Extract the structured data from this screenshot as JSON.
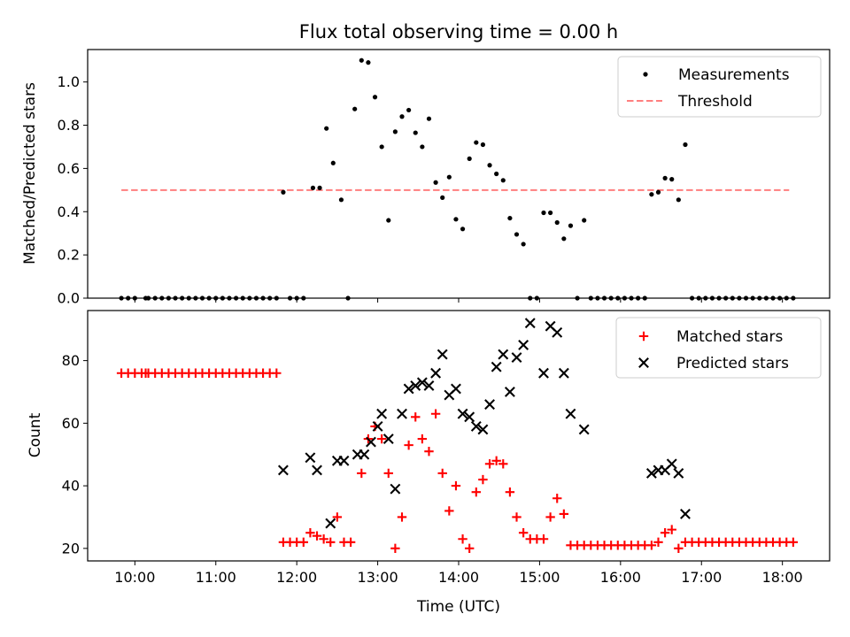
{
  "figure_title": "Flux total observing time = 0.00 h",
  "chart_data": [
    {
      "type": "scatter",
      "panel": "top",
      "title": "Flux total observing time = 0.00 h",
      "xlabel": "",
      "ylabel": "Matched/Predicted stars",
      "xlim": [
        "09:25",
        "18:35"
      ],
      "ylim": [
        0,
        1.15
      ],
      "x_ticks": [
        "10:00",
        "11:00",
        "12:00",
        "13:00",
        "14:00",
        "15:00",
        "16:00",
        "17:00",
        "18:00"
      ],
      "x_tick_labels_shown": false,
      "y_ticks": [
        "0.0",
        "0.2",
        "0.4",
        "0.6",
        "0.8",
        "1.0"
      ],
      "grid": false,
      "legend_position": "top-right",
      "series": [
        {
          "name": "Measurements",
          "kind": "points",
          "color": "#000000",
          "points": [
            [
              "09:50",
              0
            ],
            [
              "09:55",
              0
            ],
            [
              "10:00",
              0
            ],
            [
              "10:08",
              0
            ],
            [
              "10:10",
              0
            ],
            [
              "10:15",
              0
            ],
            [
              "10:20",
              0
            ],
            [
              "10:25",
              0
            ],
            [
              "10:30",
              0
            ],
            [
              "10:35",
              0
            ],
            [
              "10:40",
              0
            ],
            [
              "10:45",
              0
            ],
            [
              "10:50",
              0
            ],
            [
              "10:55",
              0
            ],
            [
              "11:00",
              0
            ],
            [
              "11:05",
              0
            ],
            [
              "11:10",
              0
            ],
            [
              "11:15",
              0
            ],
            [
              "11:20",
              0
            ],
            [
              "11:25",
              0
            ],
            [
              "11:30",
              0
            ],
            [
              "11:35",
              0
            ],
            [
              "11:40",
              0
            ],
            [
              "11:45",
              0
            ],
            [
              "11:50",
              0.49
            ],
            [
              "11:55",
              0
            ],
            [
              "12:00",
              0
            ],
            [
              "12:05",
              0
            ],
            [
              "12:12",
              0.51
            ],
            [
              "12:17",
              0.51
            ],
            [
              "12:22",
              0.785
            ],
            [
              "12:27",
              0.625
            ],
            [
              "12:33",
              0.455
            ],
            [
              "12:38",
              0
            ],
            [
              "12:43",
              0.875
            ],
            [
              "12:48",
              1.1
            ],
            [
              "12:53",
              1.09
            ],
            [
              "12:58",
              0.93
            ],
            [
              "13:03",
              0.7
            ],
            [
              "13:08",
              0.36
            ],
            [
              "13:13",
              0.77
            ],
            [
              "13:18",
              0.84
            ],
            [
              "13:23",
              0.87
            ],
            [
              "13:28",
              0.765
            ],
            [
              "13:33",
              0.7
            ],
            [
              "13:38",
              0.83
            ],
            [
              "13:43",
              0.535
            ],
            [
              "13:48",
              0.465
            ],
            [
              "13:53",
              0.56
            ],
            [
              "13:58",
              0.365
            ],
            [
              "14:03",
              0.32
            ],
            [
              "14:08",
              0.645
            ],
            [
              "14:13",
              0.72
            ],
            [
              "14:18",
              0.71
            ],
            [
              "14:23",
              0.615
            ],
            [
              "14:28",
              0.575
            ],
            [
              "14:33",
              0.545
            ],
            [
              "14:38",
              0.37
            ],
            [
              "14:43",
              0.295
            ],
            [
              "14:48",
              0.25
            ],
            [
              "14:53",
              0
            ],
            [
              "14:58",
              0
            ],
            [
              "15:03",
              0.395
            ],
            [
              "15:08",
              0.395
            ],
            [
              "15:13",
              0.35
            ],
            [
              "15:18",
              0.275
            ],
            [
              "15:23",
              0.335
            ],
            [
              "15:28",
              0
            ],
            [
              "15:33",
              0.36
            ],
            [
              "15:38",
              0
            ],
            [
              "15:43",
              0
            ],
            [
              "15:48",
              0
            ],
            [
              "15:53",
              0
            ],
            [
              "15:58",
              0
            ],
            [
              "16:03",
              0
            ],
            [
              "16:08",
              0
            ],
            [
              "16:13",
              0
            ],
            [
              "16:18",
              0
            ],
            [
              "16:23",
              0.48
            ],
            [
              "16:28",
              0.49
            ],
            [
              "16:33",
              0.555
            ],
            [
              "16:38",
              0.55
            ],
            [
              "16:43",
              0.455
            ],
            [
              "16:48",
              0.71
            ],
            [
              "16:53",
              0
            ],
            [
              "16:58",
              0
            ],
            [
              "17:03",
              0
            ],
            [
              "17:08",
              0
            ],
            [
              "17:13",
              0
            ],
            [
              "17:18",
              0
            ],
            [
              "17:23",
              0
            ],
            [
              "17:28",
              0
            ],
            [
              "17:33",
              0
            ],
            [
              "17:38",
              0
            ],
            [
              "17:43",
              0
            ],
            [
              "17:48",
              0
            ],
            [
              "17:53",
              0
            ],
            [
              "17:58",
              0
            ],
            [
              "18:03",
              0
            ],
            [
              "18:08",
              0
            ]
          ]
        },
        {
          "name": "Threshold",
          "kind": "dashed-line",
          "color": "#ff7f7f",
          "points": [
            [
              "09:50",
              0.5
            ],
            [
              "18:05",
              0.5
            ]
          ]
        }
      ]
    },
    {
      "type": "scatter",
      "panel": "bottom",
      "xlabel": "Time (UTC)",
      "ylabel": "Count",
      "xlim": [
        "09:25",
        "18:35"
      ],
      "ylim": [
        16,
        96
      ],
      "x_ticks": [
        "10:00",
        "11:00",
        "12:00",
        "13:00",
        "14:00",
        "15:00",
        "16:00",
        "17:00",
        "18:00"
      ],
      "y_ticks": [
        "20",
        "40",
        "60",
        "80"
      ],
      "grid": false,
      "legend_position": "top-right",
      "series": [
        {
          "name": "Matched stars",
          "marker": "plus",
          "color": "#ff0000",
          "points": [
            [
              "09:50",
              76
            ],
            [
              "09:55",
              76
            ],
            [
              "10:00",
              76
            ],
            [
              "10:05",
              76
            ],
            [
              "10:08",
              76
            ],
            [
              "10:10",
              76
            ],
            [
              "10:15",
              76
            ],
            [
              "10:20",
              76
            ],
            [
              "10:25",
              76
            ],
            [
              "10:30",
              76
            ],
            [
              "10:35",
              76
            ],
            [
              "10:40",
              76
            ],
            [
              "10:45",
              76
            ],
            [
              "10:50",
              76
            ],
            [
              "10:55",
              76
            ],
            [
              "11:00",
              76
            ],
            [
              "11:05",
              76
            ],
            [
              "11:10",
              76
            ],
            [
              "11:15",
              76
            ],
            [
              "11:20",
              76
            ],
            [
              "11:25",
              76
            ],
            [
              "11:30",
              76
            ],
            [
              "11:35",
              76
            ],
            [
              "11:40",
              76
            ],
            [
              "11:45",
              76
            ],
            [
              "11:50",
              22
            ],
            [
              "11:55",
              22
            ],
            [
              "12:00",
              22
            ],
            [
              "12:05",
              22
            ],
            [
              "12:10",
              25
            ],
            [
              "12:15",
              24
            ],
            [
              "12:20",
              23
            ],
            [
              "12:25",
              22
            ],
            [
              "12:30",
              30
            ],
            [
              "12:35",
              22
            ],
            [
              "12:40",
              22
            ],
            [
              "12:48",
              44
            ],
            [
              "12:53",
              55
            ],
            [
              "12:58",
              59
            ],
            [
              "13:03",
              55
            ],
            [
              "13:08",
              44
            ],
            [
              "13:13",
              20
            ],
            [
              "13:18",
              30
            ],
            [
              "13:23",
              53
            ],
            [
              "13:28",
              62
            ],
            [
              "13:33",
              55
            ],
            [
              "13:38",
              51
            ],
            [
              "13:43",
              63
            ],
            [
              "13:48",
              44
            ],
            [
              "13:53",
              32
            ],
            [
              "13:58",
              40
            ],
            [
              "14:03",
              23
            ],
            [
              "14:08",
              20
            ],
            [
              "14:13",
              38
            ],
            [
              "14:18",
              42
            ],
            [
              "14:23",
              47
            ],
            [
              "14:28",
              48
            ],
            [
              "14:33",
              47
            ],
            [
              "14:38",
              38
            ],
            [
              "14:43",
              30
            ],
            [
              "14:48",
              25
            ],
            [
              "14:53",
              23
            ],
            [
              "14:58",
              23
            ],
            [
              "15:03",
              23
            ],
            [
              "15:08",
              30
            ],
            [
              "15:13",
              36
            ],
            [
              "15:18",
              31
            ],
            [
              "15:23",
              21
            ],
            [
              "15:28",
              21
            ],
            [
              "15:33",
              21
            ],
            [
              "15:38",
              21
            ],
            [
              "15:43",
              21
            ],
            [
              "15:48",
              21
            ],
            [
              "15:53",
              21
            ],
            [
              "15:58",
              21
            ],
            [
              "16:03",
              21
            ],
            [
              "16:08",
              21
            ],
            [
              "16:13",
              21
            ],
            [
              "16:18",
              21
            ],
            [
              "16:23",
              21
            ],
            [
              "16:28",
              22
            ],
            [
              "16:33",
              25
            ],
            [
              "16:38",
              26
            ],
            [
              "16:43",
              20
            ],
            [
              "16:48",
              22
            ],
            [
              "16:53",
              22
            ],
            [
              "16:58",
              22
            ],
            [
              "17:03",
              22
            ],
            [
              "17:08",
              22
            ],
            [
              "17:13",
              22
            ],
            [
              "17:18",
              22
            ],
            [
              "17:23",
              22
            ],
            [
              "17:28",
              22
            ],
            [
              "17:33",
              22
            ],
            [
              "17:38",
              22
            ],
            [
              "17:43",
              22
            ],
            [
              "17:48",
              22
            ],
            [
              "17:53",
              22
            ],
            [
              "17:58",
              22
            ],
            [
              "18:03",
              22
            ],
            [
              "18:08",
              22
            ]
          ]
        },
        {
          "name": "Predicted stars",
          "marker": "x",
          "color": "#000000",
          "points": [
            [
              "11:50",
              45
            ],
            [
              "12:10",
              49
            ],
            [
              "12:15",
              45
            ],
            [
              "12:25",
              28
            ],
            [
              "12:30",
              48
            ],
            [
              "12:35",
              48
            ],
            [
              "12:45",
              50
            ],
            [
              "12:50",
              50
            ],
            [
              "12:55",
              54
            ],
            [
              "13:00",
              59
            ],
            [
              "13:03",
              63
            ],
            [
              "13:08",
              55
            ],
            [
              "13:13",
              39
            ],
            [
              "13:18",
              63
            ],
            [
              "13:23",
              71
            ],
            [
              "13:28",
              72
            ],
            [
              "13:33",
              73
            ],
            [
              "13:38",
              72
            ],
            [
              "13:43",
              76
            ],
            [
              "13:48",
              82
            ],
            [
              "13:53",
              69
            ],
            [
              "13:58",
              71
            ],
            [
              "14:03",
              63
            ],
            [
              "14:08",
              62
            ],
            [
              "14:13",
              59
            ],
            [
              "14:18",
              58
            ],
            [
              "14:23",
              66
            ],
            [
              "14:28",
              78
            ],
            [
              "14:33",
              82
            ],
            [
              "14:38",
              70
            ],
            [
              "14:43",
              81
            ],
            [
              "14:48",
              85
            ],
            [
              "14:53",
              92
            ],
            [
              "15:03",
              76
            ],
            [
              "15:08",
              91
            ],
            [
              "15:13",
              89
            ],
            [
              "15:18",
              76
            ],
            [
              "15:23",
              63
            ],
            [
              "15:33",
              58
            ],
            [
              "16:23",
              44
            ],
            [
              "16:28",
              45
            ],
            [
              "16:33",
              45
            ],
            [
              "16:38",
              47
            ],
            [
              "16:43",
              44
            ],
            [
              "16:48",
              31
            ]
          ]
        }
      ]
    }
  ]
}
